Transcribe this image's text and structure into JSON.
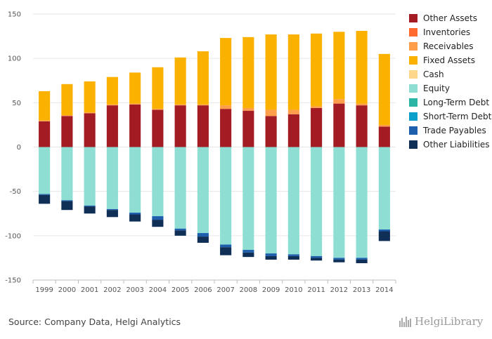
{
  "chart_data": {
    "type": "bar",
    "stacked": true,
    "categories": [
      "1999",
      "2000",
      "2001",
      "2002",
      "2003",
      "2004",
      "2005",
      "2006",
      "2007",
      "2008",
      "2009",
      "2010",
      "2011",
      "2012",
      "2013",
      "2014"
    ],
    "ylim": [
      -150,
      150
    ],
    "yticks": [
      150,
      100,
      50,
      0,
      -50,
      -100,
      -150
    ],
    "grid": true,
    "legend_position": "right",
    "series": [
      {
        "name": "Other Assets",
        "color": "#a31c24",
        "values": [
          29,
          35,
          38,
          47,
          48,
          42,
          47,
          47,
          43,
          41,
          35,
          37,
          44,
          49,
          47,
          23
        ]
      },
      {
        "name": "Inventories",
        "color": "#ff6a2f",
        "values": [
          0,
          0,
          0,
          0,
          0,
          0,
          0,
          0,
          0,
          0,
          0,
          0,
          0,
          0,
          0,
          0
        ]
      },
      {
        "name": "Receivables",
        "color": "#ff9e4a",
        "values": [
          1,
          1,
          1,
          1,
          1,
          1,
          1,
          1,
          4,
          3,
          7,
          5,
          2,
          5,
          2,
          2
        ]
      },
      {
        "name": "Fixed Assets",
        "color": "#fbb100",
        "values": [
          33,
          35,
          35,
          31,
          35,
          47,
          53,
          60,
          76,
          80,
          85,
          85,
          82,
          76,
          82,
          80
        ]
      },
      {
        "name": "Cash",
        "color": "#fcd78c",
        "values": [
          0,
          0,
          0,
          0,
          0,
          0,
          0,
          0,
          0,
          0,
          0,
          0,
          0,
          0,
          0,
          0
        ]
      },
      {
        "name": "Equity",
        "color": "#8fded4",
        "values": [
          -53,
          -60,
          -66,
          -70,
          -74,
          -78,
          -92,
          -97,
          -110,
          -116,
          -120,
          -121,
          -123,
          -125,
          -125,
          -93
        ]
      },
      {
        "name": "Long-Term Debt",
        "color": "#2ab5a4",
        "values": [
          0,
          0,
          0,
          0,
          0,
          0,
          0,
          0,
          0,
          0,
          0,
          0,
          0,
          0,
          0,
          0
        ]
      },
      {
        "name": "Short-Term Debt",
        "color": "#0ba0cc",
        "values": [
          0,
          0,
          0,
          0,
          0,
          0,
          0,
          0,
          0,
          0,
          0,
          0,
          0,
          0,
          0,
          0
        ]
      },
      {
        "name": "Trade Payables",
        "color": "#1e5fad",
        "values": [
          -1,
          -1,
          -1,
          -1,
          -2,
          -4,
          -2,
          -4,
          -3,
          -3,
          -3,
          -2,
          -2,
          -2,
          -2,
          -2
        ]
      },
      {
        "name": "Other Liabilities",
        "color": "#0f2f57",
        "values": [
          -10,
          -10,
          -8,
          -8,
          -8,
          -8,
          -6,
          -7,
          -9,
          -5,
          -4,
          -4,
          -3,
          -3,
          -4,
          -11
        ]
      }
    ]
  },
  "footer": {
    "source": "Source: Company Data, Helgi Analytics",
    "brand": "HelgiLibrary"
  }
}
